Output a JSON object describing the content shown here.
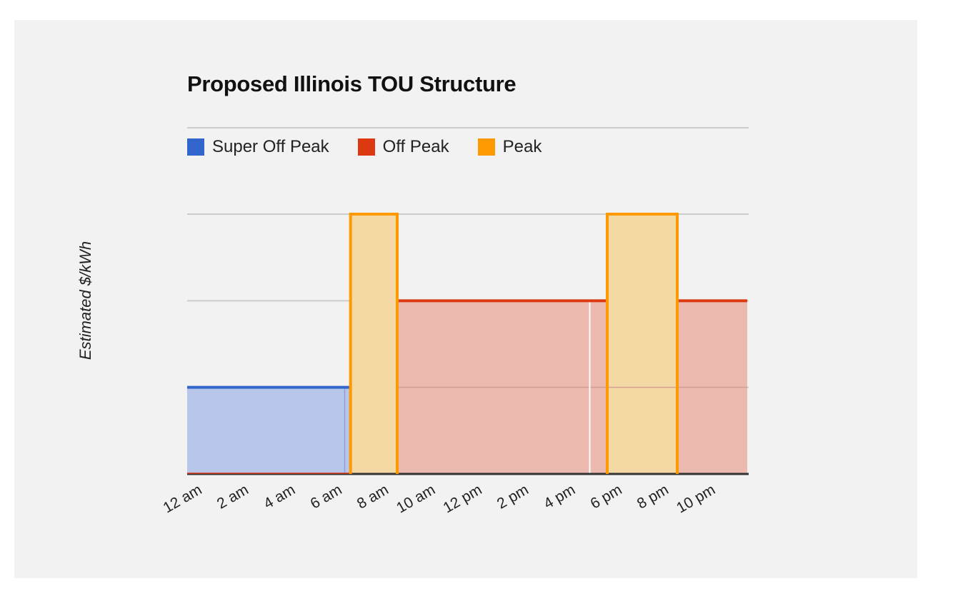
{
  "chart_data": {
    "type": "area",
    "title": "Proposed Illinois TOU Structure",
    "ylabel": "Estimated $/kWh",
    "xlabel": "",
    "x_ticks": [
      "12 am",
      "2 am",
      "4 am",
      "6 am",
      "8 am",
      "10 am",
      "12 pm",
      "2 pm",
      "4 pm",
      "6 pm",
      "8 pm",
      "10 pm"
    ],
    "xlim": [
      0,
      24
    ],
    "ylim": [
      0,
      3
    ],
    "y_tick_labels_shown": false,
    "grid": true,
    "legend_position": "top-left",
    "series": [
      {
        "name": "Super Off Peak",
        "color": "#3366cc",
        "fill": "#b8c6ea",
        "segments": [
          {
            "start": 0,
            "end": 7,
            "value": 1
          }
        ]
      },
      {
        "name": "Off Peak",
        "color": "#dc3912",
        "fill": "#ebb9ae",
        "segments": [
          {
            "start": 9,
            "end": 18,
            "value": 2
          },
          {
            "start": 21,
            "end": 24,
            "value": 2
          }
        ]
      },
      {
        "name": "Peak",
        "color": "#ff9900",
        "fill": "#f4d9a4",
        "segments": [
          {
            "start": 7,
            "end": 9,
            "value": 3
          },
          {
            "start": 18,
            "end": 21,
            "value": 3
          }
        ]
      }
    ]
  }
}
